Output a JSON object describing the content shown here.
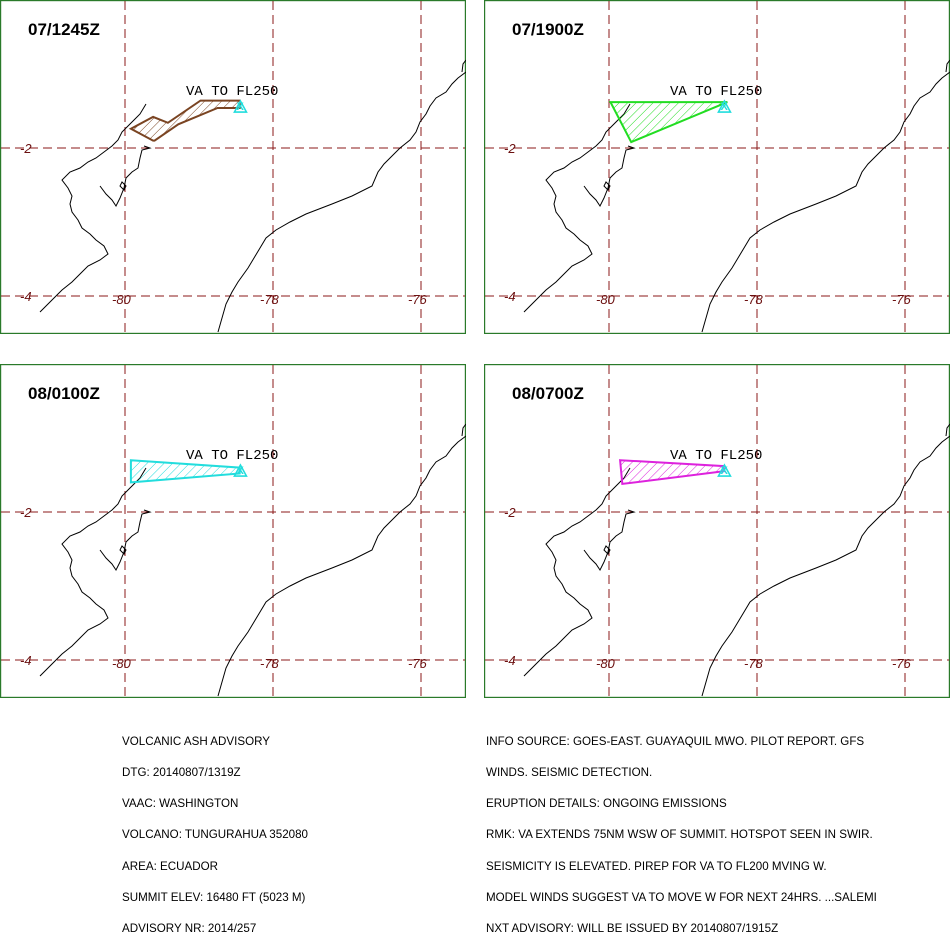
{
  "panels": [
    {
      "time": "07/1245Z",
      "label": "VA TO FL250",
      "color": "#7a4422",
      "polygon": [
        [
          -79.92,
          -1.74
        ],
        [
          -79.62,
          -1.58
        ],
        [
          -79.42,
          -1.66
        ],
        [
          -78.98,
          -1.36
        ],
        [
          -78.45,
          -1.36
        ],
        [
          -78.45,
          -1.46
        ],
        [
          -78.75,
          -1.46
        ],
        [
          -79.28,
          -1.68
        ],
        [
          -79.6,
          -1.9
        ],
        [
          -79.62,
          -1.9
        ]
      ]
    },
    {
      "time": "07/1900Z",
      "label": "VA TO FL250",
      "color": "#22dd22",
      "polygon": [
        [
          -79.98,
          -1.38
        ],
        [
          -78.4,
          -1.38
        ],
        [
          -79.7,
          -1.92
        ]
      ]
    },
    {
      "time": "08/0100Z",
      "label": "VA TO FL250",
      "color": "#22dddd",
      "polygon": [
        [
          -79.92,
          -1.3
        ],
        [
          -78.45,
          -1.4
        ],
        [
          -78.45,
          -1.48
        ],
        [
          -79.92,
          -1.6
        ]
      ]
    },
    {
      "time": "08/0700Z",
      "label": "VA TO FL250",
      "color": "#dd22dd",
      "polygon": [
        [
          -79.85,
          -1.3
        ],
        [
          -78.45,
          -1.38
        ],
        [
          -78.45,
          -1.45
        ],
        [
          -79.82,
          -1.62
        ]
      ]
    }
  ],
  "volcano_marker": "X",
  "lat_ticks": [
    "-2",
    "-4"
  ],
  "lon_ticks": [
    "-80",
    "-78",
    "-76"
  ],
  "footer_left": [
    "VOLCANIC ASH ADVISORY",
    "DTG: 20140807/1319Z",
    "VAAC: WASHINGTON",
    "VOLCANO: TUNGURAHUA 352080",
    "AREA: ECUADOR",
    "SUMMIT ELEV: 16480 FT (5023 M)",
    "ADVISORY NR: 2014/257"
  ],
  "footer_right": [
    "INFO SOURCE: GOES-EAST. GUAYAQUIL MWO. PILOT REPORT. GFS",
    "WINDS. SEISMIC DETECTION.",
    "ERUPTION DETAILS: ONGOING EMISSIONS",
    "RMK: VA EXTENDS 75NM WSW OF SUMMIT. HOTSPOT SEEN IN SWIR.",
    "SEISMICITY IS ELEVATED. PIREP FOR VA TO FL200 MVING W.",
    "MODEL WINDS SUGGEST VA TO MOVE W FOR NEXT 24HRS. ...SALEMI",
    "NXT ADVISORY: WILL BE ISSUED BY 20140807/1915Z"
  ]
}
